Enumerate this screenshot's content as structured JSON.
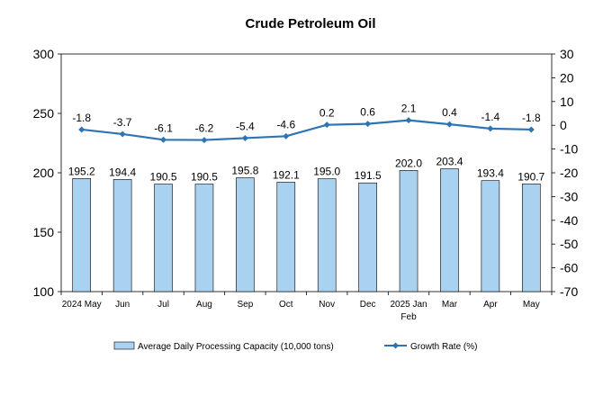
{
  "chart_data": {
    "type": "bar",
    "title": "Crude Petroleum Oil",
    "categories": [
      "2024 May",
      "Jun",
      "Jul",
      "Aug",
      "Sep",
      "Oct",
      "Nov",
      "Dec",
      "2025 Jan-Feb",
      "Mar",
      "Apr",
      "May"
    ],
    "series": [
      {
        "name": "Average Daily Processing Capacity (10,000 tons)",
        "type": "bar",
        "axis": "left",
        "values": [
          195.2,
          194.4,
          190.5,
          190.5,
          195.8,
          192.1,
          195.0,
          191.5,
          202.0,
          203.4,
          193.4,
          190.7
        ],
        "labels": [
          "195.2",
          "194.4",
          "190.5",
          "190.5",
          "195.8",
          "192.1",
          "195.0",
          "191.5",
          "202.0",
          "203.4",
          "193.4",
          "190.7"
        ],
        "color": "#a9d2f1"
      },
      {
        "name": "Growth Rate (%)",
        "type": "line",
        "axis": "right",
        "values": [
          -1.8,
          -3.7,
          -6.1,
          -6.2,
          -5.4,
          -4.6,
          0.2,
          0.6,
          2.1,
          0.4,
          -1.4,
          -1.8
        ],
        "labels": [
          "-1.8",
          "-3.7",
          "-6.1",
          "-6.2",
          "-5.4",
          "-4.6",
          "0.2",
          "0.6",
          "2.1",
          "0.4",
          "-1.4",
          "-1.8"
        ],
        "color": "#2e74b5"
      }
    ],
    "y_left": {
      "lim": [
        100,
        300
      ],
      "ticks": [
        "100",
        "150",
        "200",
        "250",
        "300"
      ]
    },
    "y_right": {
      "lim": [
        -70,
        30
      ],
      "ticks": [
        "-70",
        "-60",
        "-50",
        "-40",
        "-30",
        "-20",
        "-10",
        "0",
        "10",
        "20",
        "30"
      ]
    },
    "grid": false,
    "legend": "bottom"
  }
}
